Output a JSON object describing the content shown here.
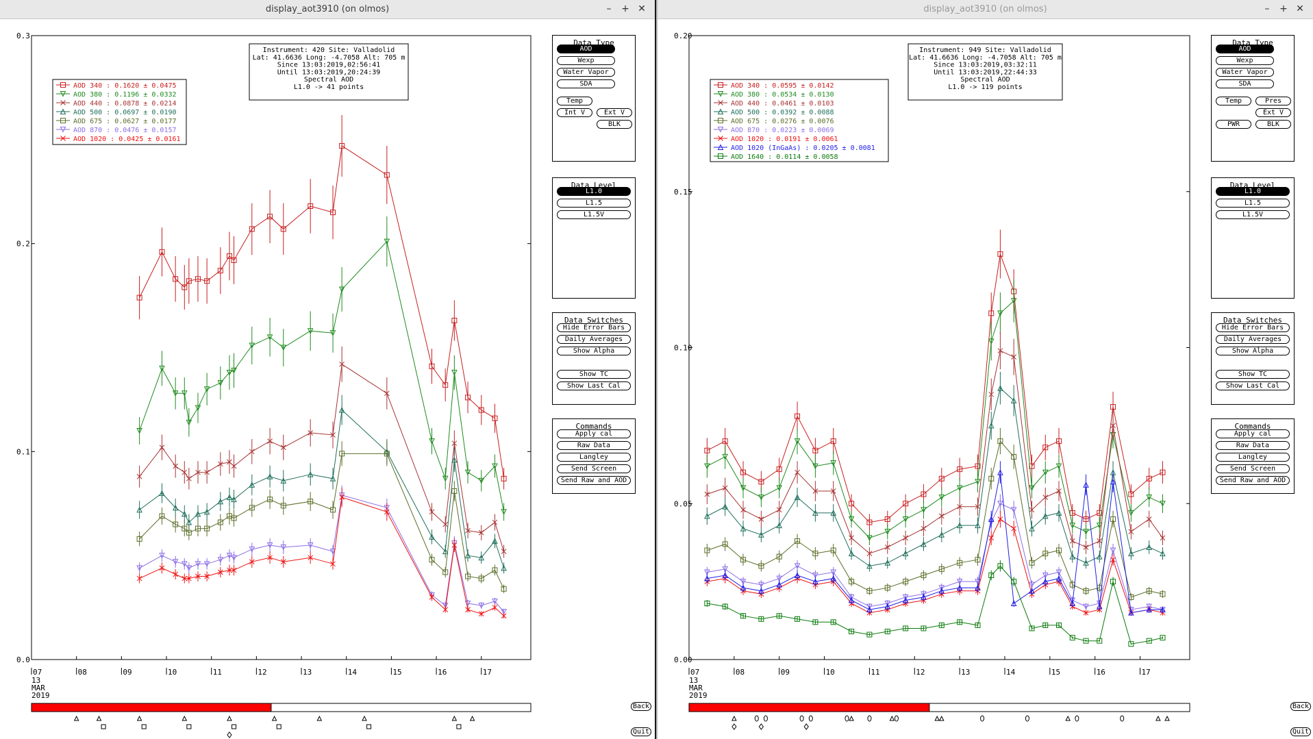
{
  "windows": [
    {
      "title": "display_aot3910 (on olmos)",
      "info": [
        "Instrument: 420 Site: Valladolid",
        "Lat: 41.6636 Long: -4.7058 Alt: 705 m",
        "Since 13:03:2019,02:56:41",
        "Until 13:03:2019,20:24:39",
        "Spectral AOD",
        "L1.0 -> 41 points"
      ],
      "legend": [
        {
          "label": "AOD 340   : 0.1620 ± 0.0475",
          "color": "#c81e1e",
          "marker": "square"
        },
        {
          "label": "AOD 380   : 0.1196 ± 0.0332",
          "color": "#1e8a1e",
          "marker": "tri-down"
        },
        {
          "label": "AOD 440   : 0.0878 ± 0.0214",
          "color": "#a83232",
          "marker": "x"
        },
        {
          "label": "AOD 500   : 0.0697 ± 0.0190",
          "color": "#1e6e5a",
          "marker": "tri-up"
        },
        {
          "label": "AOD 675   : 0.0627 ± 0.0177",
          "color": "#5a6e28",
          "marker": "square"
        },
        {
          "label": "AOD 870   : 0.0476 ± 0.0157",
          "color": "#8c6ee6",
          "marker": "tri-down"
        },
        {
          "label": "AOD 1020  : 0.0425 ± 0.0161",
          "color": "#ee1111",
          "marker": "x"
        }
      ],
      "buttons": {
        "data_type": [
          "AOD",
          "Wexp",
          "Water Vapor",
          "SDA"
        ],
        "temp": [
          "Temp",
          "Int V",
          "Ext V",
          "BLK"
        ]
      },
      "markers": "left"
    },
    {
      "title": "display_aot3910 (on olmos)",
      "info": [
        "Instrument: 949 Site: Valladolid",
        "Lat: 41.6636 Long: -4.7058 Alt: 705 m",
        "Since 13:03:2019,03:32:11",
        "Until 13:03:2019,22:44:33",
        "Spectral AOD",
        "L1.0 -> 119 points"
      ],
      "legend": [
        {
          "label": "AOD 340   : 0.0595 ± 0.0142",
          "color": "#c81e1e",
          "marker": "square"
        },
        {
          "label": "AOD 380   : 0.0534 ± 0.0130",
          "color": "#1e8a1e",
          "marker": "tri-down"
        },
        {
          "label": "AOD 440   : 0.0461 ± 0.0103",
          "color": "#a83232",
          "marker": "x"
        },
        {
          "label": "AOD 500   : 0.0392 ± 0.0088",
          "color": "#1e6e5a",
          "marker": "tri-up"
        },
        {
          "label": "AOD 675   : 0.0276 ± 0.0076",
          "color": "#5a6e28",
          "marker": "square"
        },
        {
          "label": "AOD 870   : 0.0223 ± 0.0069",
          "color": "#8c6ee6",
          "marker": "tri-down"
        },
        {
          "label": "AOD 1020  : 0.0191 ± 0.0061",
          "color": "#ee1111",
          "marker": "x"
        },
        {
          "label": "AOD 1020 (InGaAs)  : 0.0205 ± 0.0081",
          "color": "#1e1ee6",
          "marker": "tri-up"
        },
        {
          "label": "AOD 1640  : 0.0114 ± 0.0058",
          "color": "#0a7a0a",
          "marker": "square"
        }
      ],
      "buttons": {
        "data_type": [
          "AOD",
          "Wexp",
          "Water Vapor",
          "SDA"
        ],
        "temp": [
          "Temp",
          "Pres",
          "Ext V",
          "PWR",
          "BLK"
        ]
      },
      "markers": "right"
    }
  ],
  "common": {
    "data_level_title": "Data Level",
    "data_levels": [
      "L1.0",
      "L1.5",
      "L1.5V"
    ],
    "data_type_title": "Data Type",
    "switches_title": "Data Switches",
    "switches": [
      "Hide Error Bars",
      "Daily Averages",
      "Show Alpha",
      "Show TC",
      "Show Last Cal"
    ],
    "commands_title": "Commands",
    "commands": [
      "Apply cal",
      "Raw Data",
      "Langley",
      "Send Screen",
      "Send Raw and AOD"
    ],
    "back_label": "Back",
    "quit_label": "Quit",
    "date_label": [
      "13",
      "MAR",
      "2019"
    ],
    "window_buttons": [
      "–",
      "+",
      "✕"
    ]
  },
  "chart_data": [
    {
      "type": "line",
      "title": "Instrument: 420 Site: Valladolid",
      "xlabel": "",
      "ylabel": "",
      "xlim": [
        7,
        18.1
      ],
      "ylim": [
        0,
        0.3
      ],
      "x_ticks": [
        "07",
        "08",
        "09",
        "10",
        "11",
        "12",
        "13",
        "14",
        "15",
        "16",
        "17"
      ],
      "y_ticks": [
        "0.0",
        "0.1",
        "0.2",
        "0.3"
      ],
      "grid": false,
      "legend_position": "top-left",
      "x": [
        9.4,
        9.9,
        10.2,
        10.4,
        10.5,
        10.7,
        10.9,
        11.2,
        11.4,
        11.5,
        11.9,
        12.3,
        12.6,
        13.2,
        13.7,
        13.9,
        14.9,
        15.9,
        16.2,
        16.4,
        16.7,
        17.0,
        17.3,
        17.5
      ],
      "series": [
        {
          "name": "AOD 340",
          "values": [
            0.174,
            0.196,
            0.183,
            0.179,
            0.182,
            0.183,
            0.182,
            0.187,
            0.194,
            0.192,
            0.207,
            0.213,
            0.207,
            0.218,
            0.215,
            0.247,
            0.233,
            0.141,
            0.132,
            0.163,
            0.126,
            0.12,
            0.116,
            0.087
          ]
        },
        {
          "name": "AOD 380",
          "values": [
            0.11,
            0.14,
            0.128,
            0.128,
            0.114,
            0.121,
            0.13,
            0.133,
            0.138,
            0.139,
            0.151,
            0.155,
            0.15,
            0.158,
            0.157,
            0.178,
            0.201,
            0.105,
            0.087,
            0.138,
            0.09,
            0.086,
            0.093,
            0.071
          ]
        },
        {
          "name": "AOD 440",
          "values": [
            0.088,
            0.102,
            0.093,
            0.09,
            0.087,
            0.09,
            0.09,
            0.094,
            0.095,
            0.093,
            0.1,
            0.105,
            0.102,
            0.109,
            0.108,
            0.142,
            0.128,
            0.071,
            0.065,
            0.104,
            0.062,
            0.061,
            0.066,
            0.052
          ]
        },
        {
          "name": "AOD 500",
          "values": [
            0.072,
            0.08,
            0.073,
            0.07,
            0.066,
            0.07,
            0.071,
            0.076,
            0.078,
            0.077,
            0.084,
            0.088,
            0.086,
            0.089,
            0.087,
            0.12,
            0.1,
            0.059,
            0.052,
            0.096,
            0.05,
            0.049,
            0.057,
            0.044
          ]
        },
        {
          "name": "AOD 675",
          "values": [
            0.058,
            0.069,
            0.065,
            0.063,
            0.061,
            0.063,
            0.063,
            0.066,
            0.069,
            0.068,
            0.073,
            0.077,
            0.074,
            0.076,
            0.072,
            0.099,
            0.099,
            0.048,
            0.042,
            0.081,
            0.04,
            0.039,
            0.043,
            0.034
          ]
        },
        {
          "name": "AOD 870",
          "values": [
            0.044,
            0.05,
            0.047,
            0.046,
            0.044,
            0.046,
            0.046,
            0.048,
            0.05,
            0.049,
            0.053,
            0.055,
            0.054,
            0.055,
            0.052,
            0.079,
            0.073,
            0.031,
            0.026,
            0.056,
            0.027,
            0.026,
            0.028,
            0.023
          ]
        },
        {
          "name": "AOD 1020",
          "values": [
            0.039,
            0.044,
            0.041,
            0.039,
            0.039,
            0.04,
            0.04,
            0.042,
            0.043,
            0.043,
            0.047,
            0.049,
            0.047,
            0.049,
            0.046,
            0.078,
            0.071,
            0.03,
            0.024,
            0.055,
            0.024,
            0.022,
            0.025,
            0.021
          ]
        }
      ]
    },
    {
      "type": "line",
      "title": "Instrument: 949 Site: Valladolid",
      "xlabel": "",
      "ylabel": "",
      "xlim": [
        7,
        18.1
      ],
      "ylim": [
        0,
        0.2
      ],
      "x_ticks": [
        "07",
        "08",
        "09",
        "10",
        "11",
        "12",
        "13",
        "14",
        "15",
        "16",
        "17"
      ],
      "y_ticks": [
        "0.00",
        "0.05",
        "0.10",
        "0.15",
        "0.20"
      ],
      "grid": false,
      "legend_position": "top-left",
      "x": [
        7.4,
        7.8,
        8.2,
        8.6,
        9.0,
        9.4,
        9.8,
        10.2,
        10.6,
        11.0,
        11.4,
        11.8,
        12.2,
        12.6,
        13.0,
        13.4,
        13.7,
        13.9,
        14.2,
        14.6,
        14.9,
        15.2,
        15.5,
        15.8,
        16.1,
        16.4,
        16.8,
        17.2,
        17.5
      ],
      "series": [
        {
          "name": "AOD 340",
          "values": [
            0.067,
            0.07,
            0.06,
            0.057,
            0.061,
            0.078,
            0.067,
            0.07,
            0.05,
            0.044,
            0.045,
            0.05,
            0.053,
            0.058,
            0.061,
            0.062,
            0.111,
            0.13,
            0.118,
            0.062,
            0.068,
            0.07,
            0.047,
            0.045,
            0.047,
            0.081,
            0.053,
            0.058,
            0.06
          ]
        },
        {
          "name": "AOD 380",
          "values": [
            0.062,
            0.065,
            0.055,
            0.052,
            0.055,
            0.07,
            0.062,
            0.063,
            0.045,
            0.039,
            0.041,
            0.045,
            0.048,
            0.052,
            0.055,
            0.057,
            0.102,
            0.111,
            0.115,
            0.055,
            0.06,
            0.062,
            0.043,
            0.041,
            0.043,
            0.072,
            0.047,
            0.052,
            0.05
          ]
        },
        {
          "name": "AOD 440",
          "values": [
            0.053,
            0.055,
            0.048,
            0.045,
            0.048,
            0.06,
            0.054,
            0.054,
            0.039,
            0.034,
            0.036,
            0.039,
            0.042,
            0.046,
            0.049,
            0.049,
            0.085,
            0.099,
            0.097,
            0.048,
            0.052,
            0.054,
            0.038,
            0.036,
            0.038,
            0.075,
            0.041,
            0.045,
            0.039
          ]
        },
        {
          "name": "AOD 500",
          "values": [
            0.046,
            0.049,
            0.042,
            0.04,
            0.043,
            0.052,
            0.047,
            0.047,
            0.034,
            0.03,
            0.031,
            0.034,
            0.037,
            0.04,
            0.043,
            0.043,
            0.075,
            0.087,
            0.083,
            0.042,
            0.046,
            0.047,
            0.033,
            0.031,
            0.033,
            0.06,
            0.034,
            0.036,
            0.034
          ]
        },
        {
          "name": "AOD 675",
          "values": [
            0.035,
            0.037,
            0.032,
            0.03,
            0.033,
            0.038,
            0.034,
            0.035,
            0.025,
            0.022,
            0.023,
            0.025,
            0.027,
            0.029,
            0.031,
            0.032,
            0.058,
            0.07,
            0.065,
            0.031,
            0.034,
            0.035,
            0.024,
            0.022,
            0.023,
            0.045,
            0.02,
            0.022,
            0.021
          ]
        },
        {
          "name": "AOD 870",
          "values": [
            0.028,
            0.029,
            0.025,
            0.024,
            0.026,
            0.03,
            0.027,
            0.028,
            0.02,
            0.017,
            0.018,
            0.02,
            0.021,
            0.023,
            0.025,
            0.025,
            0.044,
            0.05,
            0.048,
            0.024,
            0.027,
            0.028,
            0.019,
            0.017,
            0.018,
            0.035,
            0.016,
            0.017,
            0.016
          ]
        },
        {
          "name": "AOD 1020",
          "values": [
            0.025,
            0.026,
            0.022,
            0.021,
            0.023,
            0.026,
            0.024,
            0.025,
            0.018,
            0.015,
            0.016,
            0.018,
            0.019,
            0.021,
            0.022,
            0.022,
            0.039,
            0.045,
            0.042,
            0.021,
            0.024,
            0.025,
            0.017,
            0.015,
            0.016,
            0.032,
            0.015,
            0.016,
            0.015
          ]
        },
        {
          "name": "AOD 1020 (InGaAs)",
          "values": [
            0.026,
            0.027,
            0.023,
            0.022,
            0.024,
            0.027,
            0.025,
            0.026,
            0.019,
            0.016,
            0.017,
            0.019,
            0.02,
            0.022,
            0.023,
            0.023,
            0.045,
            0.06,
            0.018,
            0.022,
            0.025,
            0.026,
            0.018,
            0.056,
            0.017,
            0.057,
            0.015,
            0.016,
            0.016
          ]
        },
        {
          "name": "AOD 1640",
          "values": [
            0.018,
            0.017,
            0.014,
            0.013,
            0.014,
            0.013,
            0.012,
            0.012,
            0.009,
            0.008,
            0.009,
            0.01,
            0.01,
            0.011,
            0.012,
            0.011,
            0.027,
            0.03,
            0.025,
            0.01,
            0.011,
            0.011,
            0.007,
            0.006,
            0.006,
            0.025,
            0.005,
            0.006,
            0.007
          ]
        }
      ]
    }
  ]
}
